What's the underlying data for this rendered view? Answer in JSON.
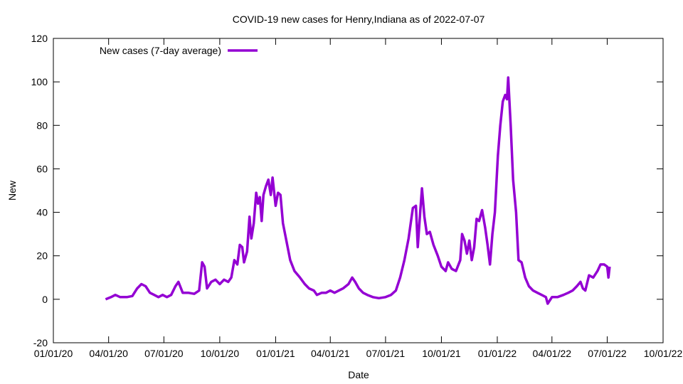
{
  "chart_data": {
    "type": "line",
    "title": "COVID-19 new cases for Henry,Indiana as of 2022-07-07",
    "xlabel": "Date",
    "ylabel": "New",
    "ylim": [
      -20,
      120
    ],
    "xlim": [
      "2020-01-01",
      "2022-10-01"
    ],
    "yticks": [
      -20,
      0,
      20,
      40,
      60,
      80,
      100,
      120
    ],
    "xticks": [
      {
        "date": "2020-01-01",
        "label": "01/01/20"
      },
      {
        "date": "2020-04-01",
        "label": "04/01/20"
      },
      {
        "date": "2020-07-01",
        "label": "07/01/20"
      },
      {
        "date": "2020-10-01",
        "label": "10/01/20"
      },
      {
        "date": "2021-01-01",
        "label": "01/01/21"
      },
      {
        "date": "2021-04-01",
        "label": "04/01/21"
      },
      {
        "date": "2021-07-01",
        "label": "07/01/21"
      },
      {
        "date": "2021-10-01",
        "label": "10/01/21"
      },
      {
        "date": "2022-01-01",
        "label": "01/01/22"
      },
      {
        "date": "2022-04-01",
        "label": "04/01/22"
      },
      {
        "date": "2022-07-01",
        "label": "07/01/22"
      },
      {
        "date": "2022-10-01",
        "label": "10/01/22"
      }
    ],
    "grid": false,
    "legend": {
      "position": "top-left",
      "entries": [
        "New cases (7-day average)"
      ]
    },
    "series": [
      {
        "name": "New cases (7-day average)",
        "color": "#9400d3",
        "points": [
          [
            "2020-03-27",
            0
          ],
          [
            "2020-04-05",
            1
          ],
          [
            "2020-04-12",
            2
          ],
          [
            "2020-04-20",
            1
          ],
          [
            "2020-05-01",
            1
          ],
          [
            "2020-05-10",
            1.5
          ],
          [
            "2020-05-18",
            5
          ],
          [
            "2020-05-25",
            7
          ],
          [
            "2020-06-01",
            6
          ],
          [
            "2020-06-08",
            3
          ],
          [
            "2020-06-15",
            2
          ],
          [
            "2020-06-22",
            1
          ],
          [
            "2020-06-29",
            2
          ],
          [
            "2020-07-06",
            1
          ],
          [
            "2020-07-13",
            2
          ],
          [
            "2020-07-20",
            6
          ],
          [
            "2020-07-25",
            8
          ],
          [
            "2020-08-01",
            3
          ],
          [
            "2020-08-10",
            3
          ],
          [
            "2020-08-20",
            2.5
          ],
          [
            "2020-08-28",
            4
          ],
          [
            "2020-09-02",
            17
          ],
          [
            "2020-09-06",
            15
          ],
          [
            "2020-09-10",
            5
          ],
          [
            "2020-09-17",
            8
          ],
          [
            "2020-09-24",
            9
          ],
          [
            "2020-10-01",
            7
          ],
          [
            "2020-10-08",
            9
          ],
          [
            "2020-10-15",
            8
          ],
          [
            "2020-10-20",
            10
          ],
          [
            "2020-10-25",
            18
          ],
          [
            "2020-10-30",
            16
          ],
          [
            "2020-11-03",
            25
          ],
          [
            "2020-11-07",
            24
          ],
          [
            "2020-11-10",
            17
          ],
          [
            "2020-11-15",
            22
          ],
          [
            "2020-11-19",
            38
          ],
          [
            "2020-11-22",
            28
          ],
          [
            "2020-11-26",
            35
          ],
          [
            "2020-11-30",
            49
          ],
          [
            "2020-12-03",
            44
          ],
          [
            "2020-12-06",
            47
          ],
          [
            "2020-12-09",
            36
          ],
          [
            "2020-12-12",
            48
          ],
          [
            "2020-12-16",
            52
          ],
          [
            "2020-12-20",
            55
          ],
          [
            "2020-12-24",
            48
          ],
          [
            "2020-12-27",
            56
          ],
          [
            "2021-01-01",
            43
          ],
          [
            "2021-01-05",
            49
          ],
          [
            "2021-01-09",
            48
          ],
          [
            "2021-01-13",
            35
          ],
          [
            "2021-01-18",
            28
          ],
          [
            "2021-01-25",
            18
          ],
          [
            "2021-02-01",
            13
          ],
          [
            "2021-02-10",
            10
          ],
          [
            "2021-02-18",
            7
          ],
          [
            "2021-02-25",
            5
          ],
          [
            "2021-03-05",
            4
          ],
          [
            "2021-03-10",
            2
          ],
          [
            "2021-03-18",
            3
          ],
          [
            "2021-03-25",
            3
          ],
          [
            "2021-04-01",
            4
          ],
          [
            "2021-04-08",
            3
          ],
          [
            "2021-04-15",
            4
          ],
          [
            "2021-04-22",
            5
          ],
          [
            "2021-05-01",
            7
          ],
          [
            "2021-05-07",
            10
          ],
          [
            "2021-05-12",
            8
          ],
          [
            "2021-05-18",
            5
          ],
          [
            "2021-05-25",
            3
          ],
          [
            "2021-06-01",
            2
          ],
          [
            "2021-06-10",
            1
          ],
          [
            "2021-06-20",
            0.5
          ],
          [
            "2021-07-01",
            1
          ],
          [
            "2021-07-10",
            2
          ],
          [
            "2021-07-18",
            4
          ],
          [
            "2021-07-25",
            10
          ],
          [
            "2021-08-01",
            18
          ],
          [
            "2021-08-08",
            28
          ],
          [
            "2021-08-15",
            42
          ],
          [
            "2021-08-20",
            43
          ],
          [
            "2021-08-23",
            24
          ],
          [
            "2021-08-27",
            40
          ],
          [
            "2021-08-30",
            51
          ],
          [
            "2021-09-03",
            38
          ],
          [
            "2021-09-07",
            30
          ],
          [
            "2021-09-12",
            31
          ],
          [
            "2021-09-18",
            25
          ],
          [
            "2021-09-25",
            20
          ],
          [
            "2021-10-01",
            15
          ],
          [
            "2021-10-08",
            13
          ],
          [
            "2021-10-12",
            17
          ],
          [
            "2021-10-18",
            14
          ],
          [
            "2021-10-25",
            13
          ],
          [
            "2021-11-01",
            18
          ],
          [
            "2021-11-04",
            30
          ],
          [
            "2021-11-08",
            27
          ],
          [
            "2021-11-12",
            21
          ],
          [
            "2021-11-16",
            27
          ],
          [
            "2021-11-20",
            18
          ],
          [
            "2021-11-24",
            24
          ],
          [
            "2021-11-28",
            37
          ],
          [
            "2021-12-02",
            36
          ],
          [
            "2021-12-07",
            41
          ],
          [
            "2021-12-12",
            33
          ],
          [
            "2021-12-16",
            25
          ],
          [
            "2021-12-20",
            16
          ],
          [
            "2021-12-24",
            30
          ],
          [
            "2021-12-28",
            40
          ],
          [
            "2022-01-02",
            66
          ],
          [
            "2022-01-06",
            80
          ],
          [
            "2022-01-10",
            91
          ],
          [
            "2022-01-14",
            94
          ],
          [
            "2022-01-17",
            92
          ],
          [
            "2022-01-19",
            102
          ],
          [
            "2022-01-23",
            80
          ],
          [
            "2022-01-27",
            55
          ],
          [
            "2022-02-01",
            40
          ],
          [
            "2022-02-05",
            18
          ],
          [
            "2022-02-10",
            17
          ],
          [
            "2022-02-16",
            10
          ],
          [
            "2022-02-22",
            6
          ],
          [
            "2022-03-01",
            4
          ],
          [
            "2022-03-08",
            3
          ],
          [
            "2022-03-15",
            2
          ],
          [
            "2022-03-22",
            1
          ],
          [
            "2022-03-25",
            -2
          ],
          [
            "2022-04-01",
            1
          ],
          [
            "2022-04-10",
            1
          ],
          [
            "2022-04-20",
            2
          ],
          [
            "2022-04-28",
            3
          ],
          [
            "2022-05-05",
            4
          ],
          [
            "2022-05-12",
            6
          ],
          [
            "2022-05-18",
            8
          ],
          [
            "2022-05-22",
            5
          ],
          [
            "2022-05-26",
            4
          ],
          [
            "2022-06-01",
            11
          ],
          [
            "2022-06-08",
            10
          ],
          [
            "2022-06-15",
            13
          ],
          [
            "2022-06-20",
            16
          ],
          [
            "2022-06-26",
            16
          ],
          [
            "2022-07-01",
            15
          ],
          [
            "2022-07-03",
            10
          ],
          [
            "2022-07-05",
            15
          ]
        ]
      }
    ]
  }
}
